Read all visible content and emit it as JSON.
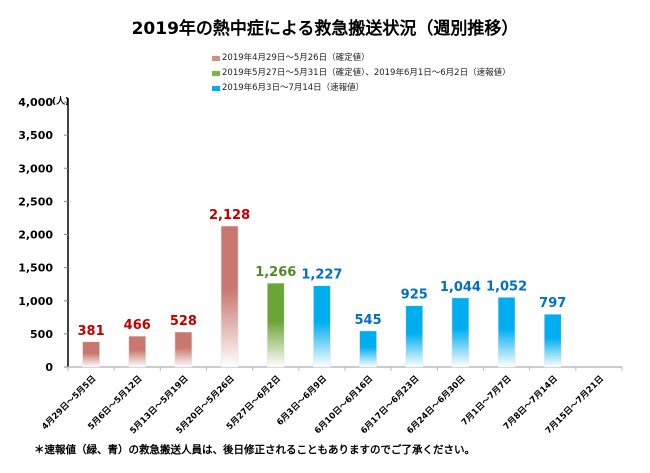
{
  "chart_data": {
    "type": "bar",
    "title": "2019年の熱中症による救急搬送状況（週別推移）",
    "ylabel": "(人)",
    "xlabel": "",
    "ylim": [
      0,
      4000
    ],
    "ytick_values": [
      0,
      500,
      1000,
      1500,
      2000,
      2500,
      3000,
      3500,
      4000
    ],
    "ytick_labels": [
      "0",
      "500",
      "1,000",
      "1,500",
      "2,000",
      "2,500",
      "3,000",
      "3,500",
      "4,000"
    ],
    "grid": false,
    "legend_position": "top-center",
    "categories": [
      "4月29日～5月5日",
      "5月6日～5月12日",
      "5月13日～5月19日",
      "5月20日～5月26日",
      "5月27日～6月2日",
      "6月3日～6月9日",
      "6月10日～6月16日",
      "6月17日～6月23日",
      "6月24日～6月30日",
      "7月1日～7月7日",
      "7月8日～7月14日",
      "7月15日～7月21日"
    ],
    "values": [
      381,
      466,
      528,
      2128,
      1266,
      1227,
      545,
      925,
      1044,
      1052,
      797,
      null
    ],
    "value_labels": [
      "381",
      "466",
      "528",
      "2,128",
      "1,266",
      "1,227",
      "545",
      "925",
      "1,044",
      "1,052",
      "797",
      ""
    ],
    "series_index": [
      0,
      0,
      0,
      0,
      1,
      2,
      2,
      2,
      2,
      2,
      2,
      null
    ],
    "series": [
      {
        "name": "2019年4月29日～5月26日（確定値）",
        "color": "#c0504d",
        "fill_top": "#c9786f",
        "label_color": "#c00000"
      },
      {
        "name": "2019年5月27日～5月31日（確定値）、2019年6月1日～6月2日（速報値）",
        "color": "#6aa535",
        "fill_top": "#6aa535",
        "label_color": "#4f8a25"
      },
      {
        "name": "2019年6月3日～7月14日（速報値）",
        "color": "#00aeef",
        "fill_top": "#00aeef",
        "label_color": "#0070c0"
      }
    ]
  },
  "footnote": "＊速報値（緑、青）の救急搬送人員は、後日修正されることもありますのでご了承ください。"
}
